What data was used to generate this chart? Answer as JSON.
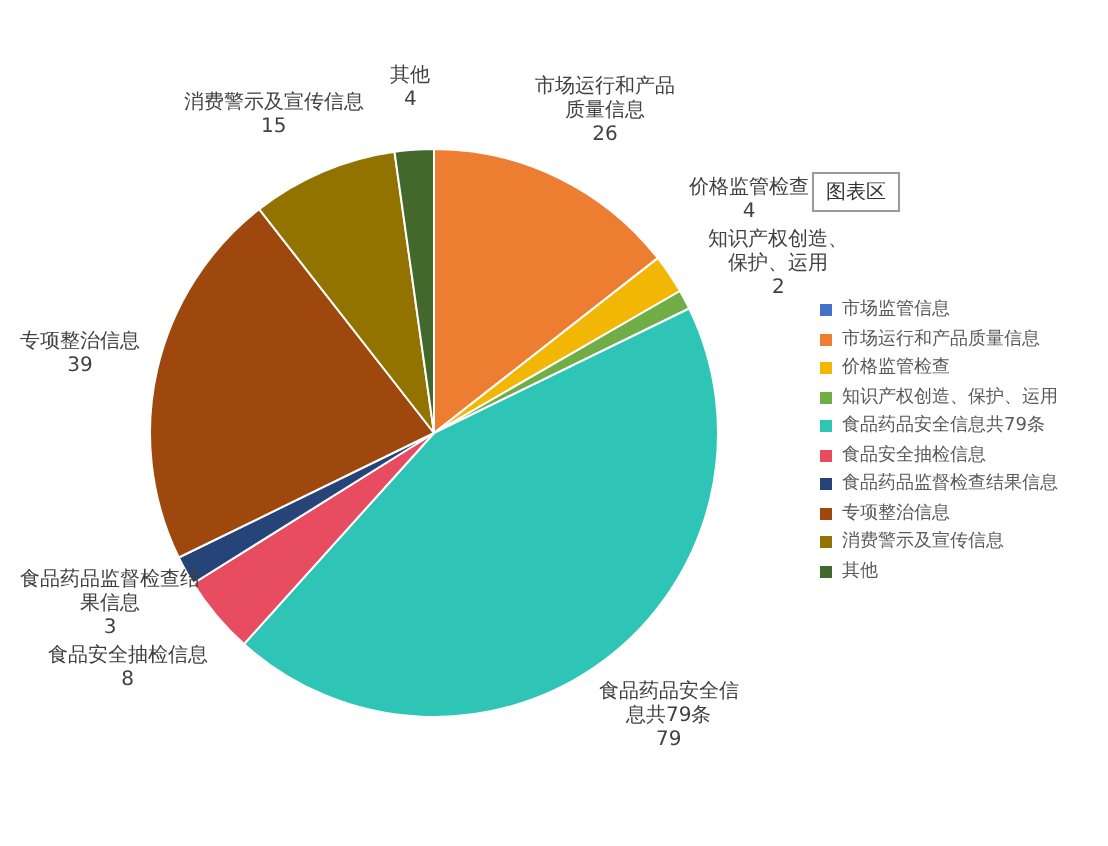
{
  "chart_data": {
    "type": "pie",
    "categories": [
      "市场监管信息",
      "市场运行和产品质量信息",
      "价格监管检查",
      "知识产权创造、保护、运用",
      "食品药品安全信息共79条",
      "食品安全抽检信息",
      "食品药品监督检查结果信息",
      "专项整治信息",
      "消费警示及宣传信息",
      "其他"
    ],
    "values": [
      0,
      26,
      4,
      2,
      79,
      8,
      3,
      39,
      15,
      4
    ],
    "value_labels": [
      null,
      "26",
      "4",
      "2",
      "79",
      "8",
      "3",
      "39",
      "15",
      "4"
    ],
    "colors": [
      "#4472c4",
      "#ed7d31",
      "#f2b705",
      "#70ad47",
      "#2ec4b6",
      "#e84c61",
      "#264478",
      "#9e480e",
      "#927300",
      "#43682b"
    ],
    "legend": "right",
    "annotations": [
      "图表区"
    ]
  }
}
